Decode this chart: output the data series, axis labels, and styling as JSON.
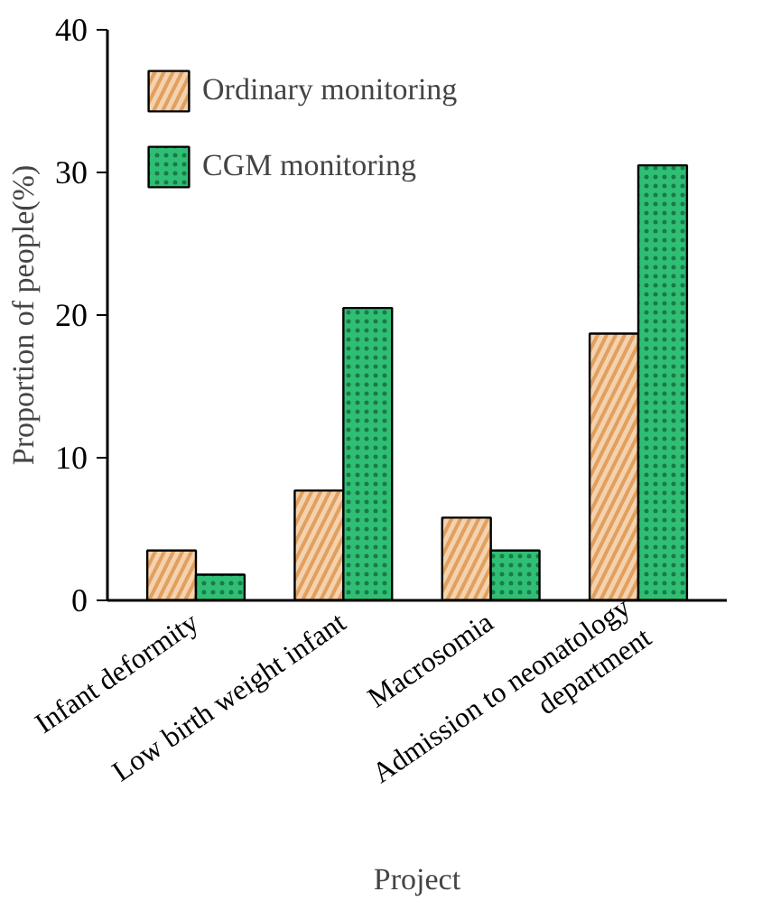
{
  "chart_data": {
    "type": "bar",
    "xlabel": "Project",
    "ylabel": "Proportion of people(%)",
    "categories": [
      "Infant deformity",
      "Low birth weight infant",
      "Macrosomia",
      "Admission to neonatology\ndepartment"
    ],
    "series": [
      {
        "name": "Ordinary monitoring",
        "color": "#f5d2ae",
        "values": [
          3.5,
          7.7,
          5.8,
          18.7
        ]
      },
      {
        "name": "CGM monitoring",
        "color": "#2fbf74",
        "values": [
          1.8,
          20.5,
          3.5,
          30.5
        ]
      }
    ],
    "ylim": [
      0,
      40
    ],
    "yticks": [
      0,
      10,
      20,
      30,
      40
    ],
    "grid": false,
    "legend": "top left"
  }
}
